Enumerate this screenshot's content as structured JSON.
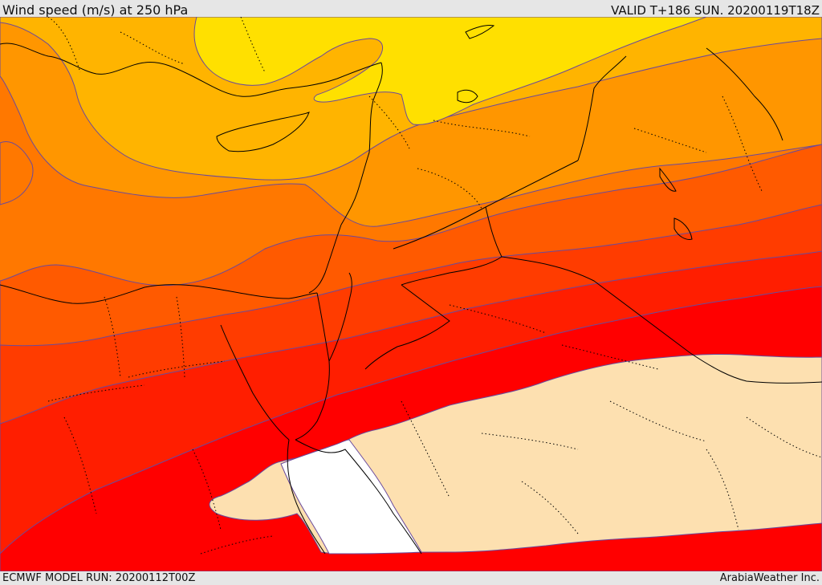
{
  "header": {
    "title": "Wind speed (m/s) at 250 hPa",
    "valid": "VALID T+186 SUN. 20200119T18Z"
  },
  "footer": {
    "model_run": "ECMWF MODEL RUN: 20200112T00Z",
    "credit": "ArabiaWeather Inc."
  },
  "map": {
    "field": "wind-speed-250hPa",
    "band_colors": {
      "lowest": "#ffffff",
      "band_1": "#fde0b0",
      "band_2": "#ff0000",
      "band_3": "#ff1e00",
      "band_4": "#ff3c00",
      "band_5": "#ff5a00",
      "band_6": "#ff7800",
      "band_7": "#ff9600",
      "band_8": "#ffb400",
      "band_9": "#ffe000"
    },
    "contour_color": "#6a4a9c",
    "coastline_color": "#000000",
    "border_style": "dotted"
  }
}
